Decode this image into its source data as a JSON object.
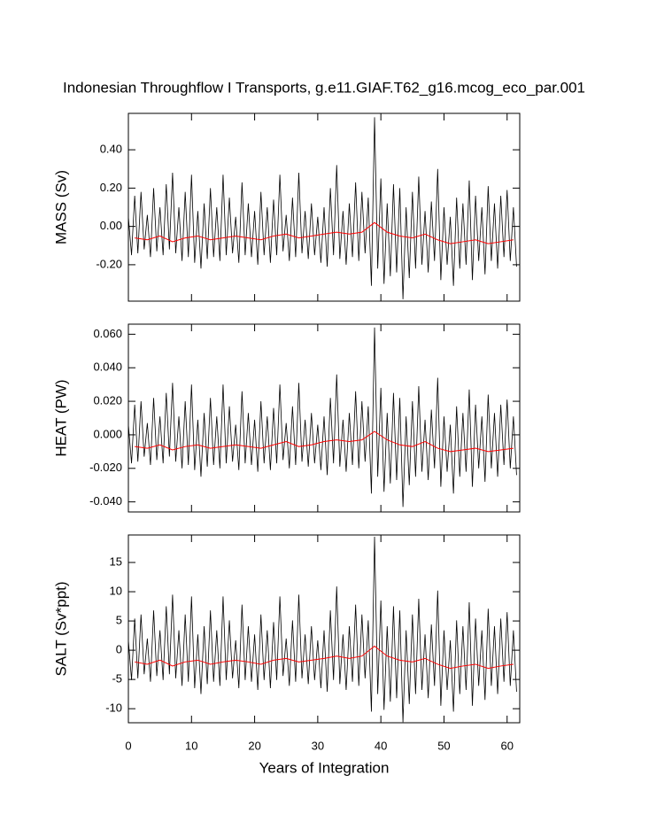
{
  "chart_data": [
    {
      "type": "line",
      "title": "Indonesian Throughflow I Transports, g.e11.GIAF.T62_g16.mcog_eco_par.001",
      "ylabel": "MASS (Sv)",
      "xlim": [
        0,
        62
      ],
      "ylim": [
        -0.39,
        0.59
      ],
      "yticks": [
        {
          "value": -0.2,
          "label": "-0.20"
        },
        {
          "value": 0,
          "label": "0.00"
        },
        {
          "value": 0.2,
          "label": "0.20"
        },
        {
          "value": 0.4,
          "label": "0.40"
        }
      ],
      "series": [
        {
          "color": "#000000",
          "x": [
            0,
            0.5,
            1,
            1.5,
            2,
            2.5,
            3,
            3.5,
            4,
            4.5,
            5,
            5.5,
            6,
            6.5,
            7,
            7.5,
            8,
            8.5,
            9,
            9.5,
            10,
            10.5,
            11,
            11.5,
            12,
            12.5,
            13,
            13.5,
            14,
            14.5,
            15,
            15.5,
            16,
            16.5,
            17,
            17.5,
            18,
            18.5,
            19,
            19.5,
            20,
            20.5,
            21,
            21.5,
            22,
            22.5,
            23,
            23.5,
            24,
            24.5,
            25,
            25.5,
            26,
            26.5,
            27,
            27.5,
            28,
            28.5,
            29,
            29.5,
            30,
            30.5,
            31,
            31.5,
            32,
            32.5,
            33,
            33.5,
            34,
            34.5,
            35,
            35.5,
            36,
            36.5,
            37,
            37.5,
            38,
            38.5,
            39,
            39.5,
            40,
            40.5,
            41,
            41.5,
            42,
            42.5,
            43,
            43.5,
            44,
            44.5,
            45,
            45.5,
            46,
            46.5,
            47,
            47.5,
            48,
            48.5,
            49,
            49.5,
            50,
            50.5,
            51,
            51.5,
            52,
            52.5,
            53,
            53.5,
            54,
            54.5,
            55,
            55.5,
            56,
            56.5,
            57,
            57.5,
            58,
            58.5,
            59,
            59.5,
            60,
            60.5,
            61,
            61.5
          ],
          "values": [
            0.05,
            -0.15,
            0.16,
            -0.14,
            0.18,
            -0.12,
            0.06,
            -0.16,
            0.2,
            -0.13,
            0.1,
            -0.15,
            0.22,
            -0.12,
            0.28,
            -0.14,
            0.1,
            -0.18,
            0.18,
            -0.16,
            0.27,
            -0.19,
            0.08,
            -0.22,
            0.12,
            -0.17,
            0.2,
            -0.16,
            0.1,
            -0.18,
            0.27,
            -0.15,
            0.15,
            -0.14,
            0.05,
            -0.19,
            0.23,
            -0.15,
            0.12,
            -0.16,
            0.08,
            -0.2,
            0.18,
            -0.15,
            0.1,
            -0.19,
            0.14,
            -0.15,
            0.27,
            -0.13,
            0.06,
            -0.18,
            0.15,
            -0.16,
            0.28,
            -0.14,
            0.08,
            -0.17,
            0.12,
            -0.15,
            0.05,
            -0.19,
            0.1,
            -0.21,
            0.2,
            -0.15,
            0.32,
            -0.17,
            0.08,
            -0.2,
            0.12,
            -0.16,
            0.23,
            -0.18,
            0.18,
            -0.14,
            0.15,
            -0.31,
            0.57,
            -0.22,
            0.25,
            -0.3,
            0.12,
            -0.26,
            0.22,
            -0.24,
            0.2,
            -0.38,
            0.1,
            -0.27,
            0.18,
            -0.22,
            0.26,
            -0.2,
            0.08,
            -0.24,
            0.13,
            -0.18,
            0.3,
            -0.28,
            0.1,
            -0.2,
            0.05,
            -0.31,
            0.15,
            -0.22,
            0.12,
            -0.2,
            0.24,
            -0.28,
            0.16,
            -0.18,
            0.1,
            -0.25,
            0.21,
            -0.18,
            0.12,
            -0.22,
            0.16,
            -0.16,
            0.19,
            -0.18,
            0.1,
            -0.21
          ]
        },
        {
          "color": "#ff0000",
          "x": [
            1,
            3,
            5,
            7,
            9,
            11,
            13,
            15,
            17,
            19,
            21,
            23,
            25,
            27,
            29,
            31,
            33,
            35,
            37,
            39,
            41,
            43,
            45,
            47,
            49,
            51,
            53,
            55,
            57,
            59,
            61
          ],
          "values": [
            -0.06,
            -0.07,
            -0.05,
            -0.08,
            -0.06,
            -0.05,
            -0.07,
            -0.06,
            -0.05,
            -0.06,
            -0.07,
            -0.05,
            -0.04,
            -0.06,
            -0.05,
            -0.04,
            -0.03,
            -0.04,
            -0.03,
            0.02,
            -0.03,
            -0.05,
            -0.06,
            -0.04,
            -0.07,
            -0.09,
            -0.08,
            -0.07,
            -0.09,
            -0.08,
            -0.07
          ]
        }
      ]
    },
    {
      "type": "line",
      "ylabel": "HEAT (PW)",
      "xlim": [
        0,
        62
      ],
      "ylim": [
        -0.046,
        0.066
      ],
      "yticks": [
        {
          "value": -0.04,
          "label": "-0.040"
        },
        {
          "value": -0.02,
          "label": "-0.020"
        },
        {
          "value": 0,
          "label": "0.000"
        },
        {
          "value": 0.02,
          "label": "0.020"
        },
        {
          "value": 0.04,
          "label": "0.040"
        },
        {
          "value": 0.06,
          "label": "0.060"
        }
      ],
      "series": [
        {
          "color": "#000000",
          "x": [
            0,
            0.5,
            1,
            1.5,
            2,
            2.5,
            3,
            3.5,
            4,
            4.5,
            5,
            5.5,
            6,
            6.5,
            7,
            7.5,
            8,
            8.5,
            9,
            9.5,
            10,
            10.5,
            11,
            11.5,
            12,
            12.5,
            13,
            13.5,
            14,
            14.5,
            15,
            15.5,
            16,
            16.5,
            17,
            17.5,
            18,
            18.5,
            19,
            19.5,
            20,
            20.5,
            21,
            21.5,
            22,
            22.5,
            23,
            23.5,
            24,
            24.5,
            25,
            25.5,
            26,
            26.5,
            27,
            27.5,
            28,
            28.5,
            29,
            29.5,
            30,
            30.5,
            31,
            31.5,
            32,
            32.5,
            33,
            33.5,
            34,
            34.5,
            35,
            35.5,
            36,
            36.5,
            37,
            37.5,
            38,
            38.5,
            39,
            39.5,
            40,
            40.5,
            41,
            41.5,
            42,
            42.5,
            43,
            43.5,
            44,
            44.5,
            45,
            45.5,
            46,
            46.5,
            47,
            47.5,
            48,
            48.5,
            49,
            49.5,
            50,
            50.5,
            51,
            51.5,
            52,
            52.5,
            53,
            53.5,
            54,
            54.5,
            55,
            55.5,
            56,
            56.5,
            57,
            57.5,
            58,
            58.5,
            59,
            59.5,
            60,
            60.5,
            61,
            61.5
          ],
          "values": [
            0.006,
            -0.017,
            0.018,
            -0.016,
            0.02,
            -0.013,
            0.007,
            -0.018,
            0.022,
            -0.015,
            0.011,
            -0.017,
            0.025,
            -0.013,
            0.031,
            -0.016,
            0.011,
            -0.02,
            0.02,
            -0.018,
            0.03,
            -0.021,
            0.009,
            -0.025,
            0.013,
            -0.019,
            0.022,
            -0.018,
            0.011,
            -0.02,
            0.03,
            -0.017,
            0.017,
            -0.016,
            0.006,
            -0.021,
            0.026,
            -0.017,
            0.013,
            -0.018,
            0.009,
            -0.022,
            0.02,
            -0.017,
            0.011,
            -0.021,
            0.016,
            -0.017,
            0.03,
            -0.015,
            0.007,
            -0.02,
            0.017,
            -0.018,
            0.031,
            -0.016,
            0.009,
            -0.019,
            0.013,
            -0.017,
            0.006,
            -0.021,
            0.011,
            -0.024,
            0.022,
            -0.017,
            0.036,
            -0.019,
            0.009,
            -0.022,
            0.013,
            -0.018,
            0.026,
            -0.02,
            0.02,
            -0.016,
            0.017,
            -0.035,
            0.064,
            -0.025,
            0.028,
            -0.034,
            0.013,
            -0.029,
            0.025,
            -0.027,
            0.022,
            -0.043,
            0.011,
            -0.03,
            0.02,
            -0.025,
            0.029,
            -0.022,
            0.009,
            -0.027,
            0.015,
            -0.02,
            0.034,
            -0.031,
            0.011,
            -0.022,
            0.006,
            -0.035,
            0.017,
            -0.025,
            0.013,
            -0.022,
            0.027,
            -0.031,
            0.018,
            -0.02,
            0.011,
            -0.028,
            0.024,
            -0.02,
            0.013,
            -0.025,
            0.018,
            -0.018,
            0.021,
            -0.02,
            0.011,
            -0.024
          ]
        },
        {
          "color": "#ff0000",
          "x": [
            1,
            3,
            5,
            7,
            9,
            11,
            13,
            15,
            17,
            19,
            21,
            23,
            25,
            27,
            29,
            31,
            33,
            35,
            37,
            39,
            41,
            43,
            45,
            47,
            49,
            51,
            53,
            55,
            57,
            59,
            61
          ],
          "values": [
            -0.007,
            -0.008,
            -0.006,
            -0.009,
            -0.007,
            -0.006,
            -0.008,
            -0.007,
            -0.006,
            -0.007,
            -0.008,
            -0.006,
            -0.004,
            -0.007,
            -0.006,
            -0.004,
            -0.003,
            -0.004,
            -0.003,
            0.002,
            -0.003,
            -0.006,
            -0.007,
            -0.004,
            -0.008,
            -0.01,
            -0.009,
            -0.008,
            -0.01,
            -0.009,
            -0.008
          ]
        }
      ]
    },
    {
      "type": "line",
      "ylabel": "SALT (Sv*ppt)",
      "xlabel": "Years of Integration",
      "xlim": [
        0,
        62
      ],
      "xticks": [
        0,
        10,
        20,
        30,
        40,
        50,
        60
      ],
      "ylim": [
        -12.4,
        19.7
      ],
      "yticks": [
        -10,
        -5,
        0,
        5,
        10,
        15
      ],
      "series": [
        {
          "color": "#000000",
          "x": [
            0,
            0.5,
            1,
            1.5,
            2,
            2.5,
            3,
            3.5,
            4,
            4.5,
            5,
            5.5,
            6,
            6.5,
            7,
            7.5,
            8,
            8.5,
            9,
            9.5,
            10,
            10.5,
            11,
            11.5,
            12,
            12.5,
            13,
            13.5,
            14,
            14.5,
            15,
            15.5,
            16,
            16.5,
            17,
            17.5,
            18,
            18.5,
            19,
            19.5,
            20,
            20.5,
            21,
            21.5,
            22,
            22.5,
            23,
            23.5,
            24,
            24.5,
            25,
            25.5,
            26,
            26.5,
            27,
            27.5,
            28,
            28.5,
            29,
            29.5,
            30,
            30.5,
            31,
            31.5,
            32,
            32.5,
            33,
            33.5,
            34,
            34.5,
            35,
            35.5,
            36,
            36.5,
            37,
            37.5,
            38,
            38.5,
            39,
            39.5,
            40,
            40.5,
            41,
            41.5,
            42,
            42.5,
            43,
            43.5,
            44,
            44.5,
            45,
            45.5,
            46,
            46.5,
            47,
            47.5,
            48,
            48.5,
            49,
            49.5,
            50,
            50.5,
            51,
            51.5,
            52,
            52.5,
            53,
            53.5,
            54,
            54.5,
            55,
            55.5,
            56,
            56.5,
            57,
            57.5,
            58,
            58.5,
            59,
            59.5,
            60,
            60.5,
            61,
            61.5
          ],
          "values": [
            1.7,
            -5.1,
            5.4,
            -4.8,
            6.1,
            -4.1,
            2.0,
            -5.4,
            6.8,
            -4.4,
            3.4,
            -5.1,
            7.5,
            -4.1,
            9.5,
            -4.8,
            3.4,
            -6.1,
            6.1,
            -5.4,
            9.2,
            -6.5,
            2.7,
            -7.5,
            4.1,
            -5.8,
            6.8,
            -5.4,
            3.4,
            -6.1,
            9.2,
            -5.1,
            5.1,
            -4.8,
            1.7,
            -6.5,
            7.8,
            -5.1,
            4.1,
            -5.4,
            2.7,
            -6.8,
            6.1,
            -5.1,
            3.4,
            -6.5,
            4.8,
            -5.1,
            9.2,
            -4.4,
            2.0,
            -6.1,
            5.1,
            -5.4,
            9.5,
            -4.8,
            2.7,
            -5.8,
            4.1,
            -5.1,
            1.7,
            -6.5,
            3.4,
            -7.1,
            6.8,
            -5.1,
            10.9,
            -5.8,
            2.7,
            -6.8,
            4.1,
            -5.4,
            7.8,
            -6.1,
            6.1,
            -4.8,
            5.1,
            -10.5,
            19.4,
            -7.5,
            8.5,
            -10.2,
            4.1,
            -8.8,
            7.5,
            -8.2,
            6.8,
            -12.3,
            3.4,
            -9.2,
            6.1,
            -7.5,
            8.8,
            -6.8,
            2.7,
            -8.2,
            4.4,
            -6.1,
            10.2,
            -9.5,
            3.4,
            -6.8,
            1.7,
            -10.5,
            5.1,
            -7.5,
            4.1,
            -6.8,
            8.2,
            -9.5,
            5.4,
            -6.1,
            3.4,
            -8.5,
            7.1,
            -6.1,
            4.1,
            -7.5,
            5.4,
            -5.4,
            6.5,
            -6.1,
            3.4,
            -7.1
          ]
        },
        {
          "color": "#ff0000",
          "x": [
            1,
            3,
            5,
            7,
            9,
            11,
            13,
            15,
            17,
            19,
            21,
            23,
            25,
            27,
            29,
            31,
            33,
            35,
            37,
            39,
            41,
            43,
            45,
            47,
            49,
            51,
            53,
            55,
            57,
            59,
            61
          ],
          "values": [
            -2.0,
            -2.4,
            -1.7,
            -2.7,
            -2.0,
            -1.7,
            -2.4,
            -2.0,
            -1.7,
            -2.0,
            -2.4,
            -1.7,
            -1.4,
            -2.0,
            -1.7,
            -1.4,
            -1.0,
            -1.4,
            -1.0,
            0.7,
            -1.0,
            -1.7,
            -2.0,
            -1.4,
            -2.4,
            -3.1,
            -2.7,
            -2.4,
            -3.1,
            -2.7,
            -2.4
          ]
        }
      ]
    }
  ]
}
